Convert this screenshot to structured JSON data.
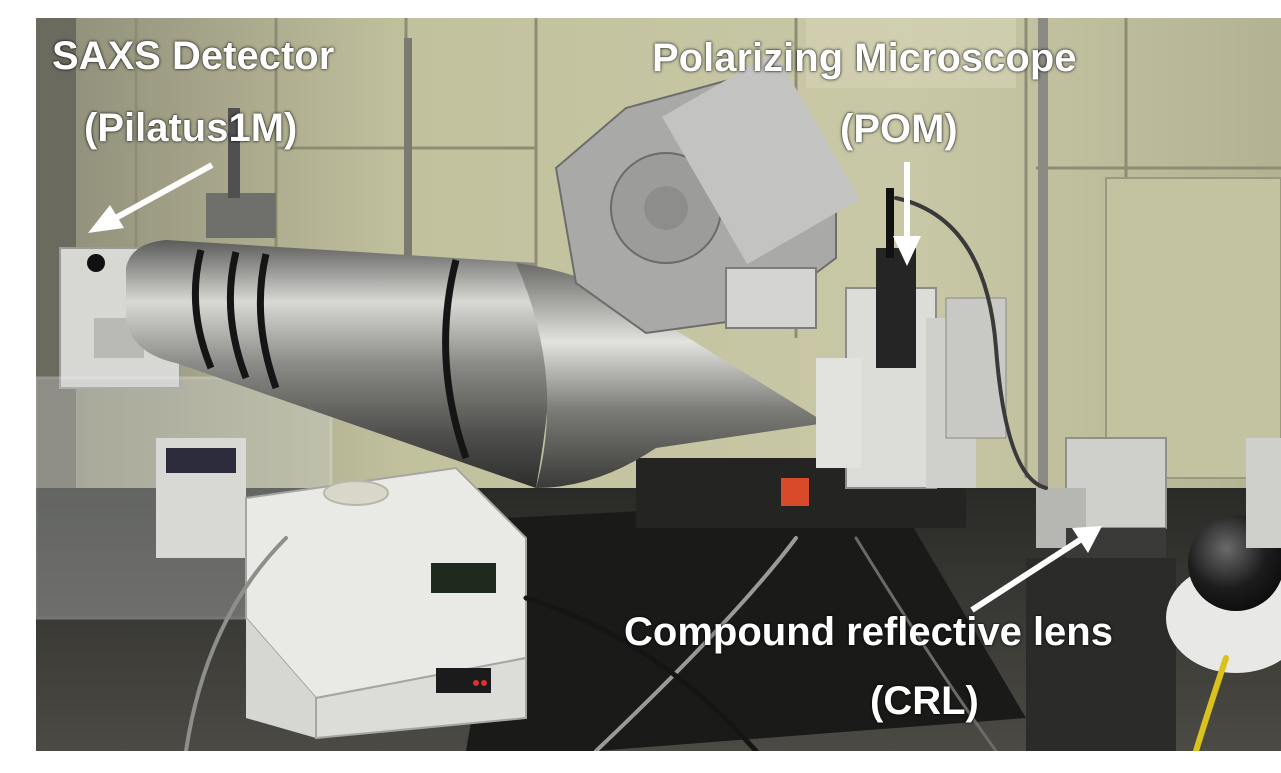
{
  "labels": {
    "saxs_line1": "SAXS Detector",
    "saxs_line2": "(Pilatus1M)",
    "pom_line1": "Polarizing Microscope",
    "pom_line2": "(POM)",
    "crl_line1": "Compound reflective lens",
    "crl_line2": "(CRL)"
  },
  "colors": {
    "label_text": "#ffffff",
    "wall": "#bfbe9a",
    "tube_steel": "#8f8f8d",
    "table_black": "#1e1e1e"
  }
}
